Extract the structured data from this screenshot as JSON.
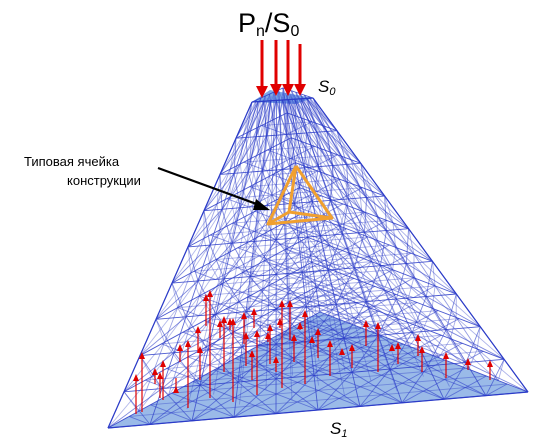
{
  "diagram": {
    "load_label": {
      "p": "P",
      "p_sub": "n",
      "sep": "/S",
      "s_sub": "0"
    },
    "top_face_label": {
      "main": "S",
      "sub": "0"
    },
    "bottom_face_label": {
      "main": "S",
      "sub": "1"
    },
    "cell_label": {
      "line1": "Типовая ячейка",
      "line2": "конструкции"
    },
    "colors": {
      "lattice": "#2c3cc8",
      "face_fill": "#8fb3e6",
      "top_face_fill": "#7ea8e8",
      "load_arrows": "#e00000",
      "reaction_arrows": "#e00000",
      "highlight_cell": "#f0a030",
      "pointer_arrow": "#000000"
    }
  }
}
